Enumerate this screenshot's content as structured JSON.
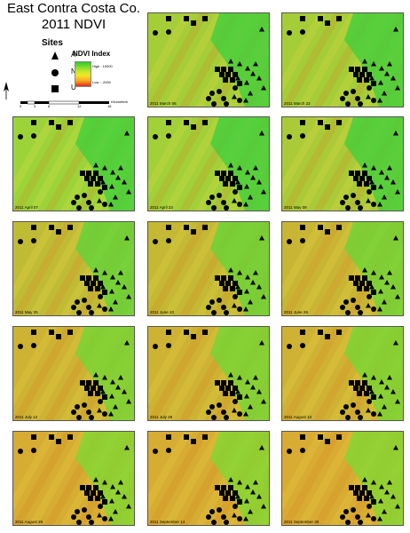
{
  "title": {
    "line1": "East Contra Costa Co.",
    "line2": "2011 NDVI"
  },
  "legend": {
    "sites_heading": "Sites",
    "sites": [
      {
        "symbol": "triangle",
        "label": "A"
      },
      {
        "symbol": "circle",
        "label": "N"
      },
      {
        "symbol": "square",
        "label": "U"
      }
    ],
    "ndvi_heading": "NDVI Index",
    "ramp_high": "High : 10000",
    "ramp_low": "Low : -2000",
    "ramp_colors": [
      "#2ecc2e",
      "#b8e62a",
      "#f2e62a",
      "#f5a623",
      "#e02a1a"
    ]
  },
  "scale": {
    "ticks": [
      "0",
      "3",
      "6",
      "12",
      "18"
    ],
    "unit": "Kilometers"
  },
  "panels": [
    {
      "date": "2011 March 06",
      "green": 0.75
    },
    {
      "date": "2011 March 22",
      "green": 0.75
    },
    {
      "date": "2011 April 07",
      "green": 0.85
    },
    {
      "date": "2011 April 23",
      "green": 0.8
    },
    {
      "date": "2011 May 09",
      "green": 0.7
    },
    {
      "date": "2011 May 25",
      "green": 0.45
    },
    {
      "date": "2011 June 10",
      "green": 0.4
    },
    {
      "date": "2011 June 26",
      "green": 0.35
    },
    {
      "date": "2011 July 12",
      "green": 0.3
    },
    {
      "date": "2011 July 28",
      "green": 0.3
    },
    {
      "date": "2011 August 13",
      "green": 0.28
    },
    {
      "date": "2011 August 29",
      "green": 0.2
    },
    {
      "date": "2011 September 14",
      "green": 0.2
    },
    {
      "date": "2011 September 30",
      "green": 0.18
    }
  ]
}
